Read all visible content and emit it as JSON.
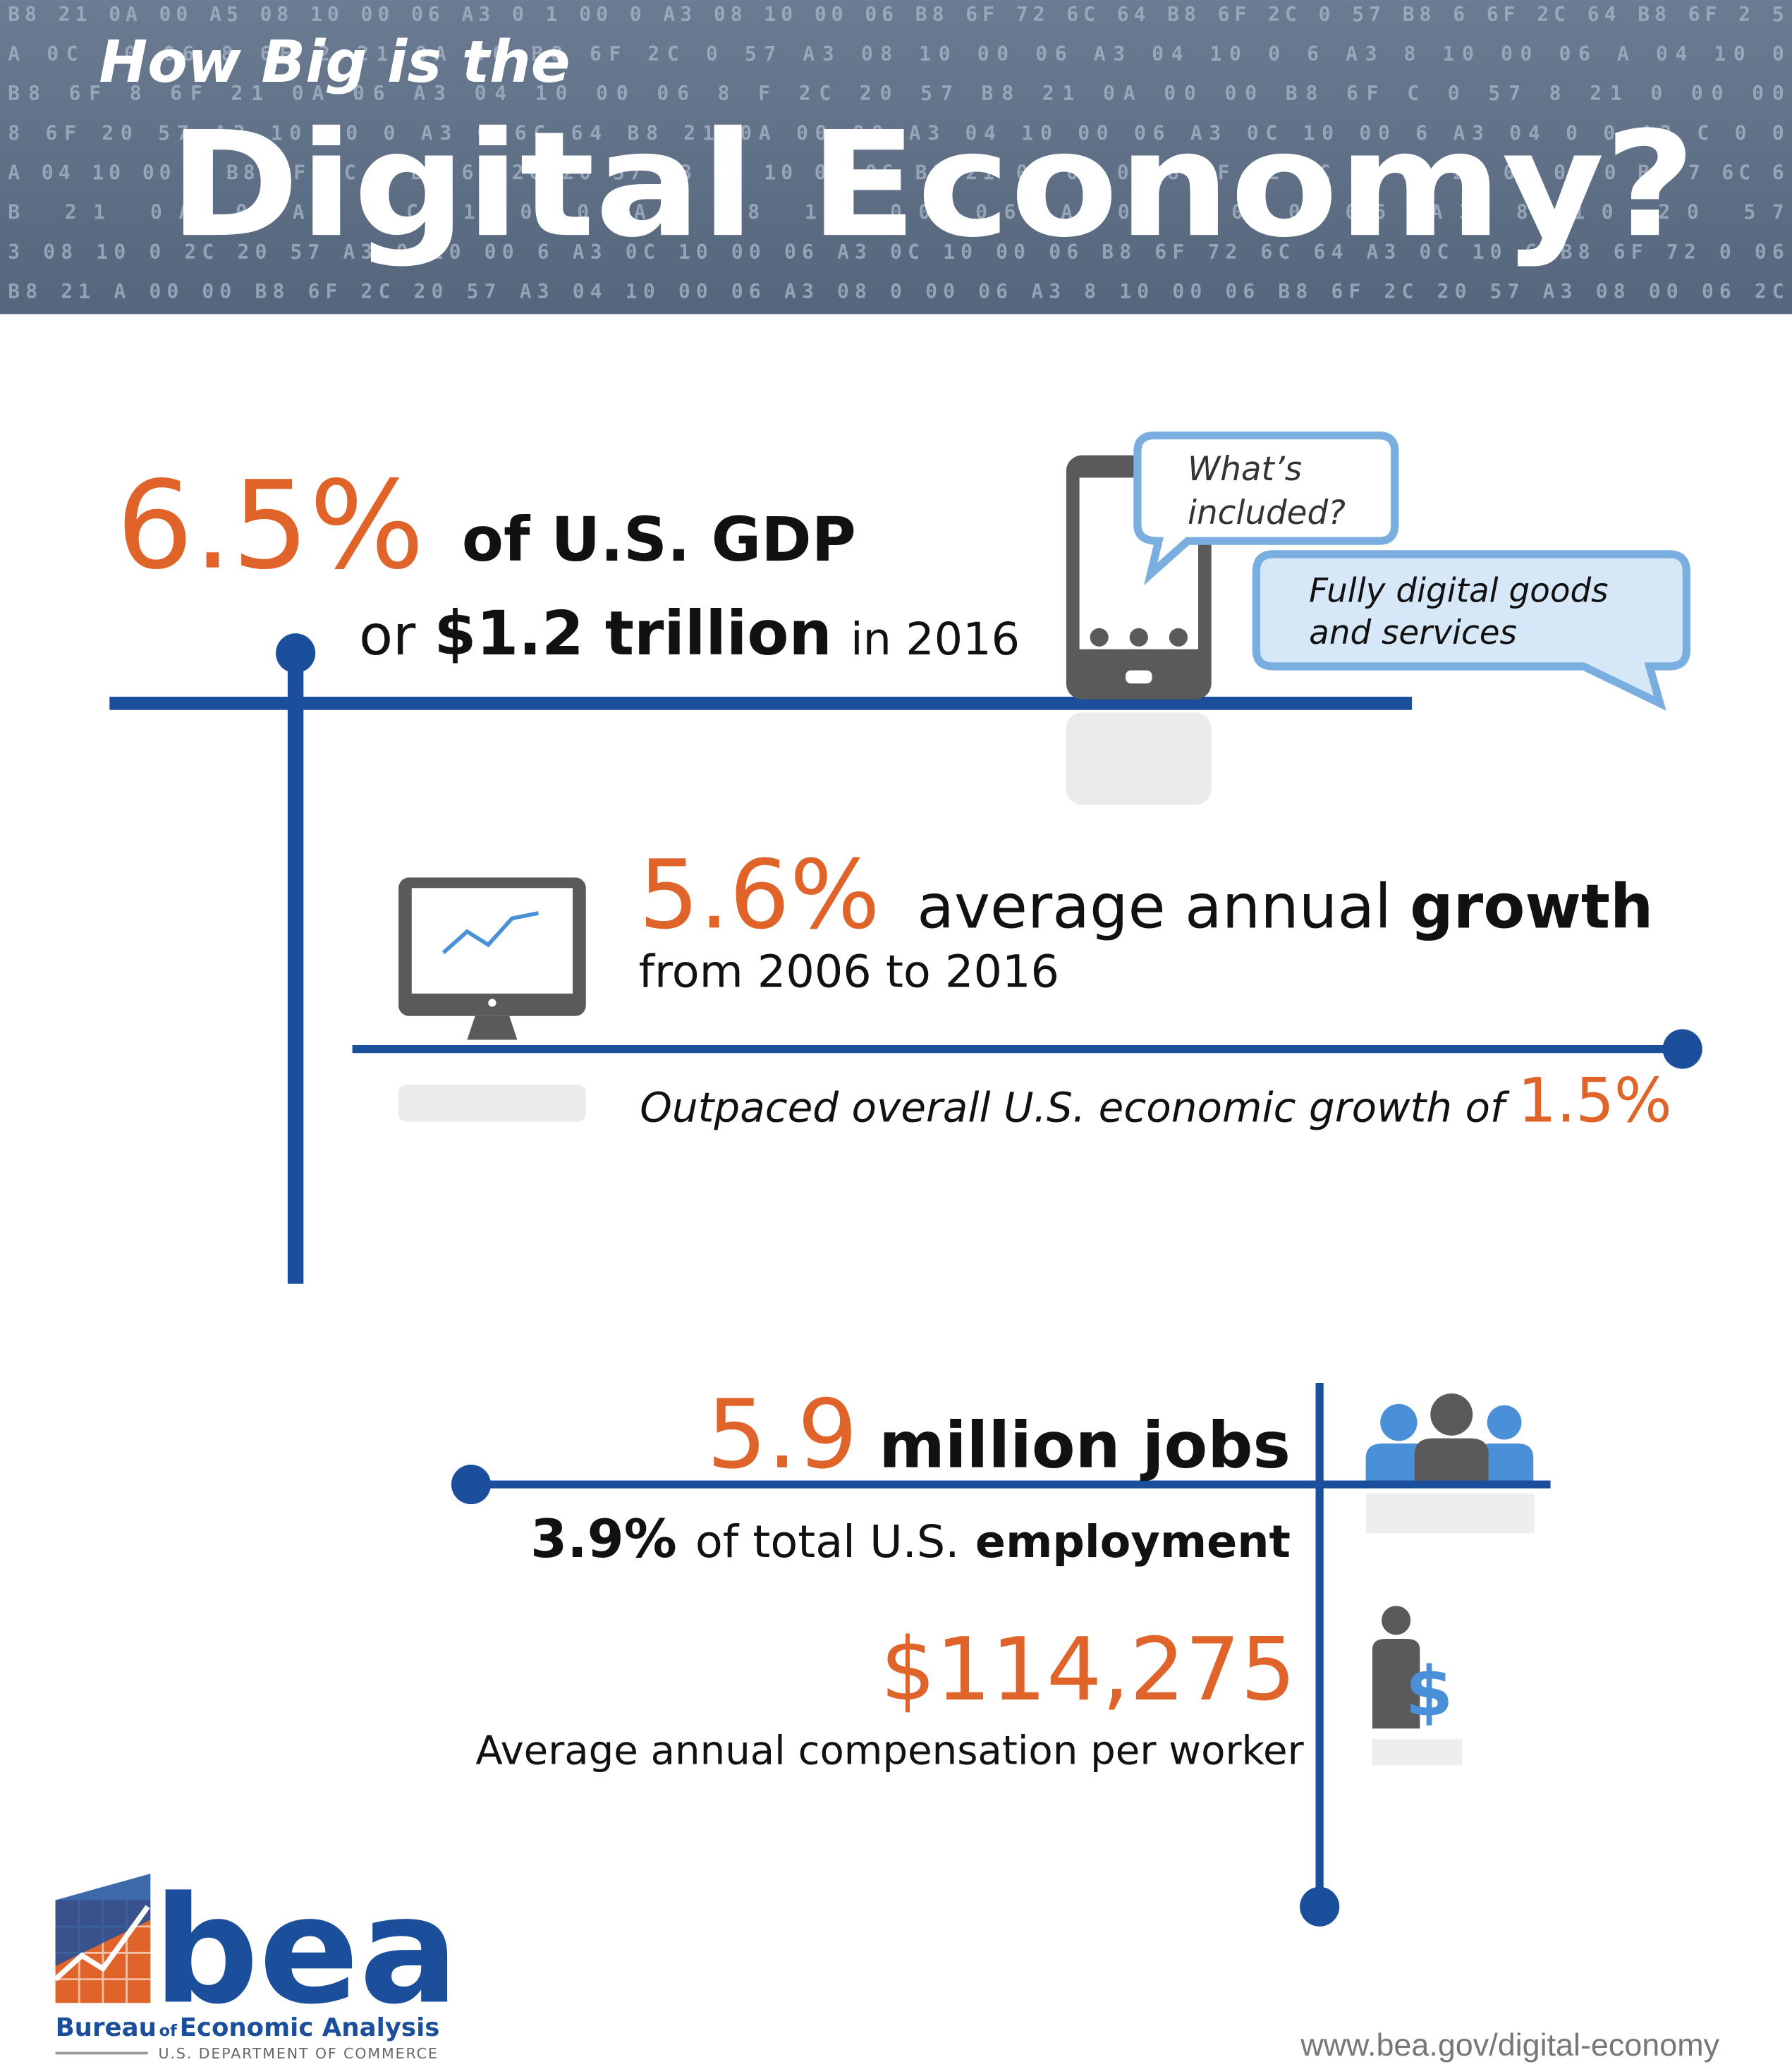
{
  "header": {
    "title_line1": "How Big is the",
    "title_line2": "Digital Economy?",
    "background_codes": [
      "B8 21 0A 00 A5 08 10 00 06 A3 0 1 00 0 A3 08 10 00 06 B8 6F 72 6C 64 B8 6F 2C 0 57 B8 6 6F 2C 64 B8 6F 2 5",
      "A 0C 00 06 8 6F 2 21 0A 00 B8 6F 2C 0 57 A3 08 10 00 06 A3 04 10 0 6 A3 8 10 00 06 A 04 10 0",
      "B8 6F 8 6F 21 0A 06 A3 04 10 00 06 8 F 2C 20 57 B8 21 0A 00 00 B8 6F C 0 57 8 21 0 00 00",
      "8 6F 20 57 A3 10 00 0 A3 0 6C 64 B8 21 0A 00 00 A3 04 10 00 06 A3 0C 10 00 6 A3 04 0 0 A3 C 0 0",
      "A 04 10 00 6 B8 6F 6C 4 B8 6F 2C 20 57 A3 0C 10 00 06 B8 21 0A 00 0 B8 6F 72 6C 64 B8 21 0A 00 0 B8 7 6C 6",
      "B 21 0A 0 A3 0C 1 0 0 A3 08 10 00 06 A 0C 10 0 06 A3 8 10 20 57",
      "3 08 10 0 2C 20 57 A3 0 10 00 6 A3 0C 10 00 06 A3 0C 10 00 06 B8 6F 72 6C 64 A3 0C 10 6 B8 6F 72 0 06",
      "B8 21 A 00 00 B8 6F 2C 20 57 A3 04 10 00 06 A3 08 0 00 06 A3 8 10 00 06 B8 6F 2C 20 57 A3 08 00 06 2C"
    ]
  },
  "gdp": {
    "share": "6.5%",
    "share_label": "of U.S. GDP",
    "or": "or",
    "amount": "$1.2 trillion",
    "year_text": "in 2016"
  },
  "bubbles": {
    "question": [
      "What’s",
      "included?"
    ],
    "answer": [
      "Fully digital goods",
      "and services"
    ]
  },
  "growth": {
    "rate": "5.6%",
    "label": "average annual",
    "label_bold": "growth",
    "period": "from 2006 to 2016",
    "comparison": "Outpaced overall U.S. economic growth of",
    "overall": "1.5%"
  },
  "jobs": {
    "count": "5.9",
    "count_label": "million jobs",
    "share": "3.9%",
    "share_label": "of total U.S.",
    "share_bold": "employment"
  },
  "compensation": {
    "amount": "$114,275",
    "label": "Average annual compensation per worker"
  },
  "logo": {
    "name": "bea",
    "org_1": "Bureau",
    "org_2": "of",
    "org_3": "Economic Analysis",
    "dept": "U.S. DEPARTMENT OF COMMERCE"
  },
  "footer": {
    "url": "www.bea.gov/digital-economy"
  }
}
